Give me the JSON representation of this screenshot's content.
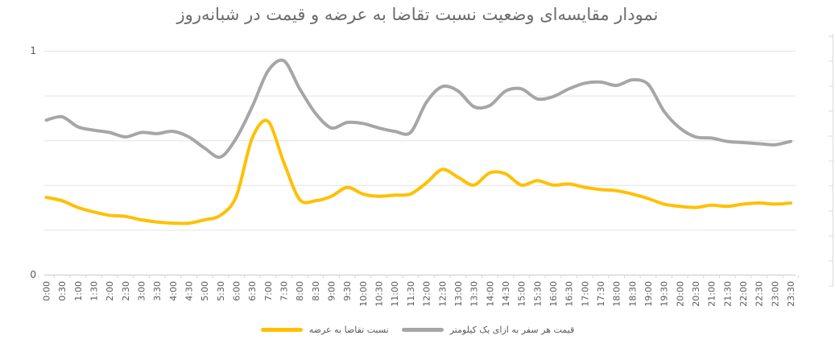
{
  "chart_data": {
    "type": "line",
    "title": "نمودار مقایسه‌ای وضعیت نسبت تقاضا به عرضه و قیمت در شبانه‌روز",
    "categories": [
      "0:00",
      "0:30",
      "1:00",
      "1:30",
      "2:00",
      "2:30",
      "3:00",
      "3:30",
      "4:00",
      "4:30",
      "5:00",
      "5:30",
      "6:00",
      "6:30",
      "7:00",
      "7:30",
      "8:00",
      "8:30",
      "9:00",
      "9:30",
      "10:00",
      "10:30",
      "11:00",
      "11:30",
      "12:00",
      "12:30",
      "13:00",
      "13:30",
      "14:00",
      "14:30",
      "15:00",
      "15:30",
      "16:00",
      "16:30",
      "17:00",
      "17:30",
      "18:00",
      "18:30",
      "19:00",
      "19:30",
      "20:00",
      "20:30",
      "21:00",
      "21:30",
      "22:00",
      "22:30",
      "23:00",
      "23:30"
    ],
    "series": [
      {
        "name": "نسبت تقاضا به عرضه",
        "color": "#FFC000",
        "values": [
          0.345,
          0.33,
          0.3,
          0.28,
          0.265,
          0.26,
          0.245,
          0.235,
          0.23,
          0.23,
          0.245,
          0.265,
          0.35,
          0.61,
          0.685,
          0.5,
          0.335,
          0.33,
          0.35,
          0.39,
          0.36,
          0.35,
          0.355,
          0.36,
          0.41,
          0.47,
          0.435,
          0.4,
          0.455,
          0.45,
          0.4,
          0.42,
          0.4,
          0.405,
          0.39,
          0.38,
          0.375,
          0.36,
          0.34,
          0.315,
          0.305,
          0.3,
          0.31,
          0.305,
          0.315,
          0.32,
          0.315,
          0.32
        ]
      },
      {
        "name": "قیمت هر سفر به ازای یک کیلومتر",
        "color": "#A6A6A6",
        "values": [
          0.69,
          0.705,
          0.66,
          0.645,
          0.635,
          0.615,
          0.635,
          0.63,
          0.64,
          0.615,
          0.565,
          0.525,
          0.61,
          0.75,
          0.91,
          0.955,
          0.83,
          0.72,
          0.655,
          0.68,
          0.675,
          0.655,
          0.64,
          0.635,
          0.77,
          0.84,
          0.82,
          0.75,
          0.755,
          0.82,
          0.83,
          0.785,
          0.795,
          0.83,
          0.855,
          0.86,
          0.845,
          0.87,
          0.85,
          0.73,
          0.655,
          0.615,
          0.61,
          0.595,
          0.59,
          0.585,
          0.58,
          0.595
        ]
      }
    ],
    "xlabel": "",
    "ylabel": "",
    "ylim": [
      0,
      1
    ],
    "grid_step": 0.2,
    "grid": "horizontal",
    "legend_position": "bottom",
    "y_axis_labels": {
      "max": "1",
      "min": "0"
    },
    "colors": {
      "gridline": "#e3e3e3",
      "axis_line": "#c9c9c9",
      "tick": "#d9d9d9",
      "axis_text": "#595959",
      "title_text": "#6b6b6b",
      "secondary_axis": "#d9d9d9"
    }
  }
}
